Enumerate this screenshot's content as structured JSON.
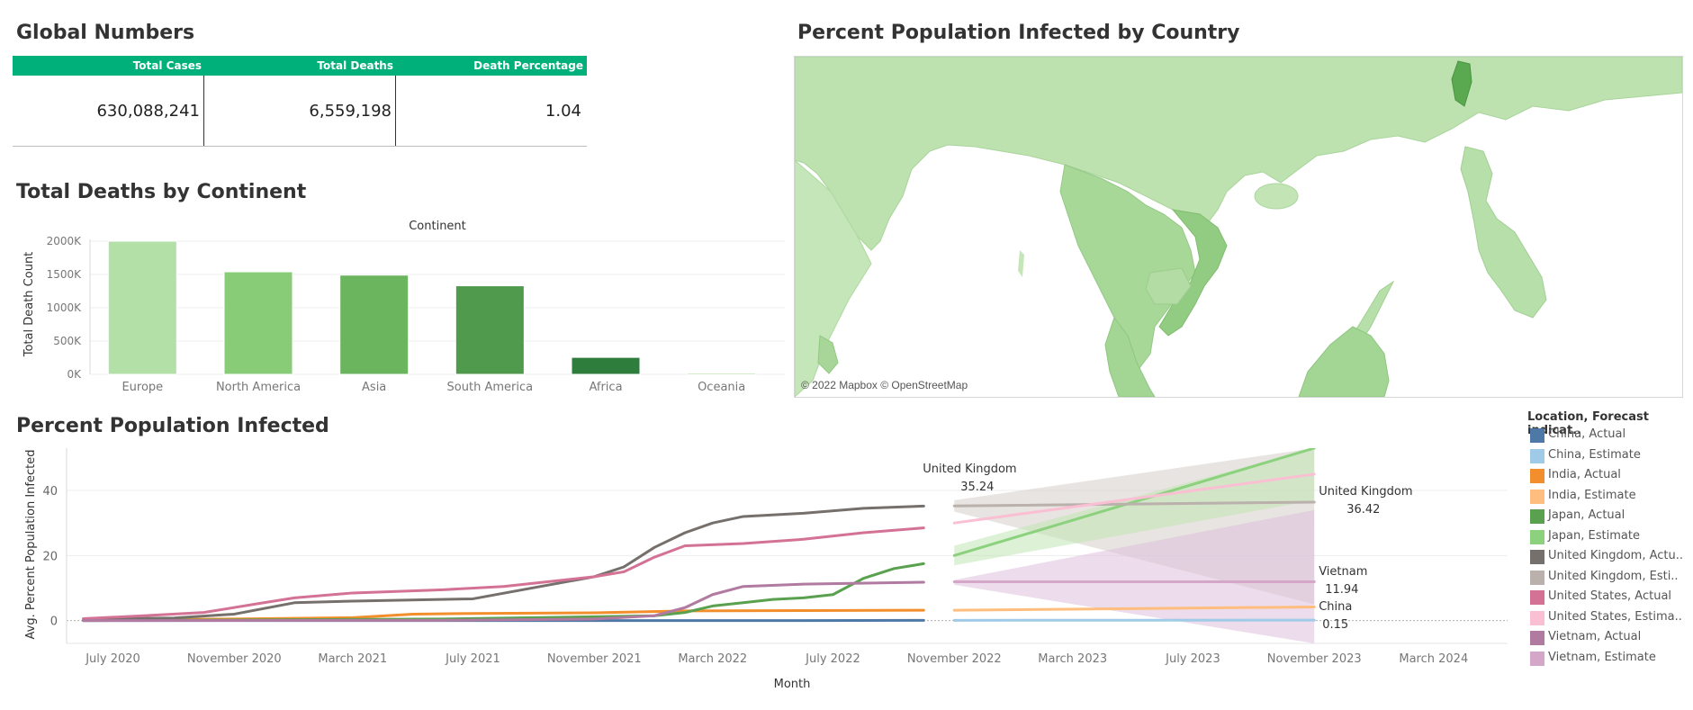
{
  "global_numbers": {
    "title": "Global Numbers",
    "columns": [
      "Total Cases",
      "Total Deaths",
      "Death Percentage"
    ],
    "values": [
      "630,088,241",
      "6,559,198",
      "1.04"
    ]
  },
  "map": {
    "title": "Percent Population Infected by Country",
    "credit": "© 2022 Mapbox © OpenStreetMap",
    "land_color": "#b9e0ab",
    "highlight_color": "#8fcc7d"
  },
  "deaths_chart": {
    "title": "Total Deaths by Continent",
    "chart_data": {
      "type": "bar",
      "title": "Continent",
      "xlabel": "",
      "ylabel": "Total Death Count",
      "categories": [
        "Europe",
        "North America",
        "Asia",
        "South America",
        "Africa",
        "Oceania"
      ],
      "values": [
        2000000,
        1540000,
        1490000,
        1330000,
        255000,
        20000
      ],
      "colors": [
        "#b3e0a6",
        "#89cc78",
        "#6bb55f",
        "#4f9a4c",
        "#2e7d3c",
        "#a4d497"
      ],
      "ylim": [
        0,
        2000000
      ],
      "yticks": [
        {
          "value": 0,
          "label": "0K"
        },
        {
          "value": 500000,
          "label": "500K"
        },
        {
          "value": 1000000,
          "label": "1000K"
        },
        {
          "value": 1500000,
          "label": "1500K"
        },
        {
          "value": 2000000,
          "label": "2000K"
        }
      ],
      "grid": true
    }
  },
  "infected_chart": {
    "title": "Percent Population Infected",
    "chart_data": {
      "type": "line",
      "xlabel": "Month",
      "ylabel": "Avg. Percent Population Infected",
      "x_range": [
        "2020-05-15",
        "2024-05-15"
      ],
      "ylim": [
        -7,
        53
      ],
      "yticks": [
        0,
        20,
        40
      ],
      "xticks": [
        {
          "date": "2020-07-01",
          "label": "July 2020"
        },
        {
          "date": "2020-11-01",
          "label": "November 2020"
        },
        {
          "date": "2021-03-01",
          "label": "March 2021"
        },
        {
          "date": "2021-07-01",
          "label": "July 2021"
        },
        {
          "date": "2021-11-01",
          "label": "November 2021"
        },
        {
          "date": "2022-03-01",
          "label": "March 2022"
        },
        {
          "date": "2022-07-01",
          "label": "July 2022"
        },
        {
          "date": "2022-11-01",
          "label": "November 2022"
        },
        {
          "date": "2023-03-01",
          "label": "March 2023"
        },
        {
          "date": "2023-07-01",
          "label": "July 2023"
        },
        {
          "date": "2023-11-01",
          "label": "November 2023"
        },
        {
          "date": "2024-03-01",
          "label": "March 2024"
        }
      ],
      "forecast_start": "2022-11-01",
      "forecast_end": "2023-11-01",
      "series": [
        {
          "name": "China, Actual",
          "color": "#4e79a7",
          "x": [
            "2020-06-01",
            "2021-06-01",
            "2022-06-01",
            "2022-10-01"
          ],
          "values": [
            0,
            0,
            0,
            0.1
          ]
        },
        {
          "name": "India, Actual",
          "color": "#f28e2b",
          "x": [
            "2020-06-01",
            "2020-11-01",
            "2021-03-01",
            "2021-05-01",
            "2021-07-01",
            "2021-11-01",
            "2022-02-01",
            "2022-06-01",
            "2022-10-01"
          ],
          "values": [
            0.1,
            0.5,
            0.9,
            2.0,
            2.2,
            2.4,
            3.0,
            3.1,
            3.2
          ]
        },
        {
          "name": "Japan, Actual",
          "color": "#59a14f",
          "x": [
            "2020-06-01",
            "2021-06-01",
            "2021-11-01",
            "2022-01-01",
            "2022-02-01",
            "2022-03-01",
            "2022-04-01",
            "2022-05-01",
            "2022-06-01",
            "2022-07-01",
            "2022-08-01",
            "2022-09-01",
            "2022-10-01"
          ],
          "values": [
            0,
            0.5,
            1.2,
            1.5,
            2.5,
            4.5,
            5.5,
            6.5,
            7.0,
            8.0,
            13.0,
            16.0,
            17.5
          ]
        },
        {
          "name": "United Kingdom, Actual",
          "color": "#76706c",
          "x": [
            "2020-06-01",
            "2020-09-01",
            "2020-11-01",
            "2021-01-01",
            "2021-03-01",
            "2021-07-01",
            "2021-11-01",
            "2021-12-01",
            "2022-01-01",
            "2022-02-01",
            "2022-03-01",
            "2022-04-01",
            "2022-06-01",
            "2022-08-01",
            "2022-10-01"
          ],
          "values": [
            0.5,
            0.8,
            2.0,
            5.5,
            6.0,
            6.7,
            13.5,
            16.5,
            22.5,
            27.0,
            30.0,
            32.0,
            33.0,
            34.5,
            35.2
          ]
        },
        {
          "name": "United States, Actual",
          "color": "#d37295",
          "x": [
            "2020-06-01",
            "2020-08-01",
            "2020-10-01",
            "2020-12-01",
            "2021-01-01",
            "2021-03-01",
            "2021-06-01",
            "2021-08-01",
            "2021-11-01",
            "2021-12-01",
            "2022-01-01",
            "2022-02-01",
            "2022-04-01",
            "2022-06-01",
            "2022-08-01",
            "2022-10-01"
          ],
          "values": [
            0.6,
            1.5,
            2.5,
            5.5,
            7.0,
            8.5,
            9.5,
            10.5,
            13.5,
            15.0,
            19.5,
            23.0,
            23.7,
            25.0,
            27.0,
            28.5
          ]
        },
        {
          "name": "Vietnam, Actual",
          "color": "#b07aa1",
          "x": [
            "2020-06-01",
            "2021-06-01",
            "2021-11-01",
            "2022-01-01",
            "2022-02-01",
            "2022-03-01",
            "2022-04-01",
            "2022-06-01",
            "2022-10-01"
          ],
          "values": [
            0,
            0.1,
            0.5,
            1.5,
            4.0,
            8.0,
            10.5,
            11.2,
            11.8
          ]
        },
        {
          "name": "China, Estimate",
          "color": "#a0cbe8",
          "x": [
            "2022-11-01",
            "2023-11-01"
          ],
          "values": [
            0.1,
            0.15
          ]
        },
        {
          "name": "India, Estimate",
          "color": "#ffbe7d",
          "x": [
            "2022-11-01",
            "2023-11-01"
          ],
          "values": [
            3.2,
            4.2
          ]
        },
        {
          "name": "Japan, Estimate",
          "color": "#8cd17d",
          "x": [
            "2022-11-01",
            "2023-11-01"
          ],
          "values": [
            20.0,
            53.0
          ]
        },
        {
          "name": "United Kingdom, Estimate",
          "color": "#bab0ac",
          "x": [
            "2022-11-01",
            "2023-11-01"
          ],
          "values": [
            35.24,
            36.42
          ]
        },
        {
          "name": "United States, Estimate",
          "color": "#fabfd2",
          "x": [
            "2022-11-01",
            "2023-11-01"
          ],
          "values": [
            30.0,
            45.0
          ]
        },
        {
          "name": "Vietnam, Estimate",
          "color": "#d4a6c8",
          "x": [
            "2022-11-01",
            "2023-11-01"
          ],
          "values": [
            11.94,
            11.94
          ]
        }
      ],
      "bands": [
        {
          "color": "#d5cec9",
          "x": [
            "2022-11-01",
            "2023-11-01"
          ],
          "low": [
            33.5,
            5
          ],
          "high": [
            37.0,
            53
          ]
        },
        {
          "color": "#bfe6b3",
          "x": [
            "2022-11-01",
            "2023-11-01"
          ],
          "low": [
            17.0,
            37
          ],
          "high": [
            23.0,
            53
          ]
        },
        {
          "color": "#ddbfdc",
          "x": [
            "2022-11-01",
            "2023-11-01"
          ],
          "low": [
            11.0,
            -7
          ],
          "high": [
            12.5,
            34
          ]
        }
      ],
      "annotations": [
        {
          "text": "United Kingdom",
          "value": "35.24",
          "anchor": "start"
        },
        {
          "text": "United Kingdom",
          "value": "36.42",
          "anchor": "end"
        },
        {
          "text": "Vietnam",
          "value": "11.94",
          "anchor": "end"
        },
        {
          "text": "China",
          "value": "0.15",
          "anchor": "end"
        }
      ],
      "legend": {
        "title": "Location, Forecast indicat..",
        "placement": "right",
        "items": [
          {
            "label": "China, Actual",
            "color": "#4e79a7"
          },
          {
            "label": "China, Estimate",
            "color": "#a0cbe8"
          },
          {
            "label": "India, Actual",
            "color": "#f28e2b"
          },
          {
            "label": "India, Estimate",
            "color": "#ffbe7d"
          },
          {
            "label": "Japan, Actual",
            "color": "#59a14f"
          },
          {
            "label": "Japan, Estimate",
            "color": "#8cd17d"
          },
          {
            "label": "United Kingdom, Actu..",
            "color": "#76706c"
          },
          {
            "label": "United Kingdom, Esti..",
            "color": "#bab0ac"
          },
          {
            "label": "United States, Actual",
            "color": "#d37295"
          },
          {
            "label": "United States, Estima..",
            "color": "#fabfd2"
          },
          {
            "label": "Vietnam, Actual",
            "color": "#b07aa1"
          },
          {
            "label": "Vietnam, Estimate",
            "color": "#d4a6c8"
          }
        ]
      }
    }
  }
}
